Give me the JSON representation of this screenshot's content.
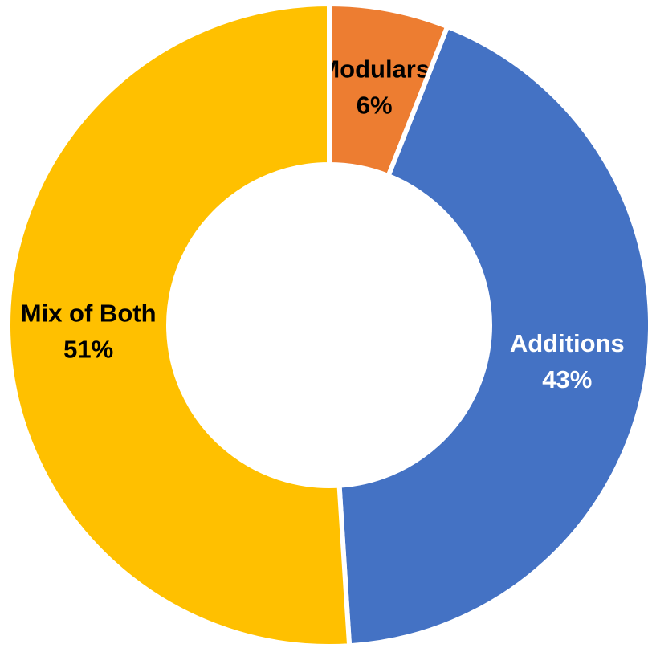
{
  "chart_data": {
    "type": "donut",
    "categories": [
      "Modulars",
      "Additions",
      "Mix of Both"
    ],
    "values": [
      6,
      43,
      51
    ],
    "value_labels": [
      "6%",
      "43%",
      "51%"
    ],
    "colors": [
      "#ED7D31",
      "#4472C4",
      "#FFC000"
    ],
    "label_colors": [
      "#000000",
      "#FFFFFF",
      "#000000"
    ]
  }
}
